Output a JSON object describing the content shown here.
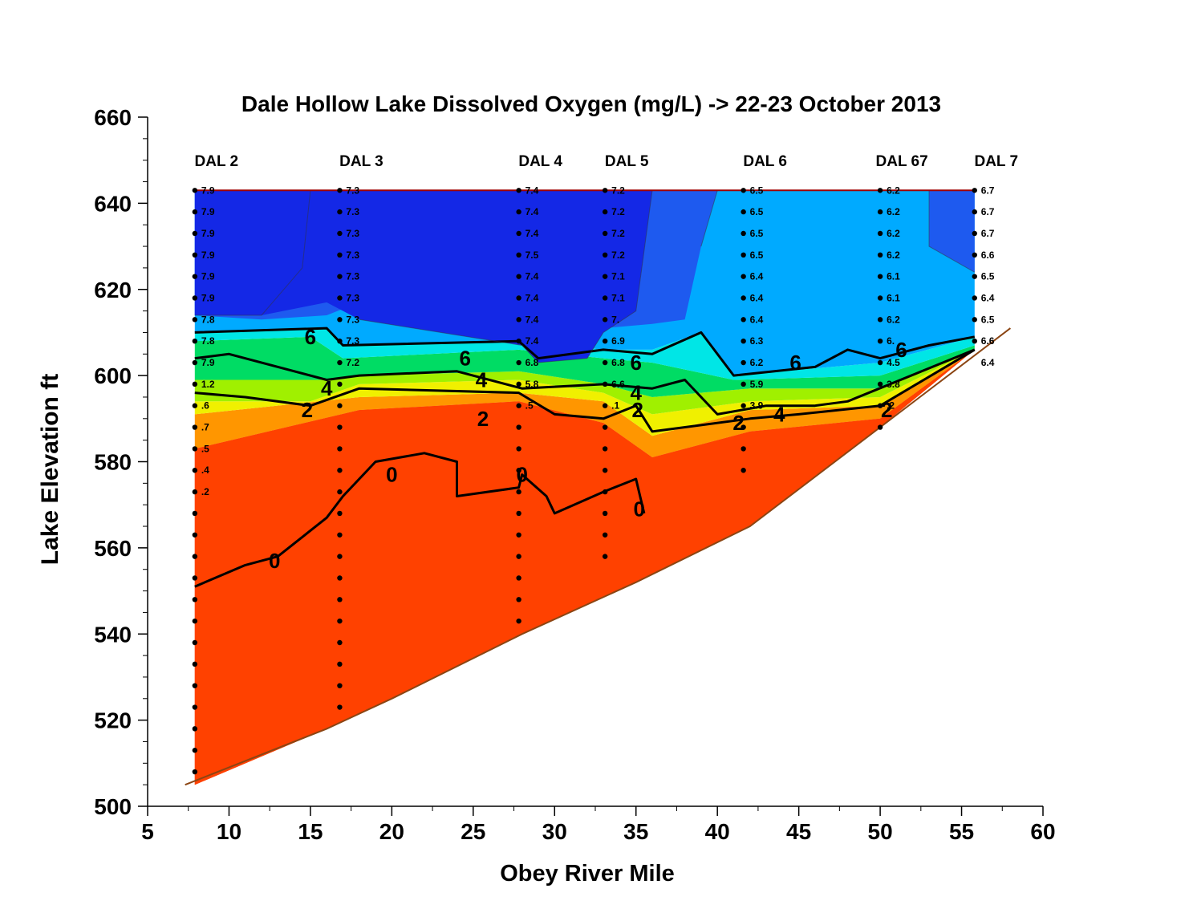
{
  "chart_data": {
    "type": "contour",
    "title": "Dale Hollow Lake Dissolved Oxygen (mg/L)  ->  22-23 October 2013",
    "xlabel": "Obey  River  Mile",
    "ylabel": "Lake  Elevation  ft",
    "xlim": [
      5,
      60
    ],
    "ylim": [
      500,
      660
    ],
    "x_ticks": [
      "5",
      "10",
      "15",
      "20",
      "25",
      "30",
      "35",
      "40",
      "45",
      "50",
      "55",
      "60"
    ],
    "y_ticks": [
      "500",
      "520",
      "540",
      "560",
      "580",
      "600",
      "620",
      "640",
      "660"
    ],
    "surface_elevation": 643,
    "bottom_profile": [
      [
        7.3,
        505
      ],
      [
        16,
        518
      ],
      [
        20,
        525
      ],
      [
        28,
        540
      ],
      [
        35,
        552
      ],
      [
        42,
        565
      ],
      [
        58,
        611
      ]
    ],
    "stations": [
      {
        "name": "DAL 2",
        "mile": 7.9,
        "bottom": 505,
        "labels": [
          "7.9",
          "7.9",
          "7.9",
          "7.9",
          "7.9",
          "7.9",
          "7.8",
          "7.8",
          "7.9",
          "1.2",
          ".6",
          ".7",
          ".5",
          ".4",
          ".2"
        ]
      },
      {
        "name": "DAL 3",
        "mile": 16.8,
        "bottom": 523,
        "labels": [
          "7.3",
          "7.3",
          "7.3",
          "7.3",
          "7.3",
          "7.3",
          "7.3",
          "7.3",
          "7.2"
        ]
      },
      {
        "name": "DAL 4",
        "mile": 27.8,
        "bottom": 543,
        "labels": [
          "7.4",
          "7.4",
          "7.4",
          "7.5",
          "7.4",
          "7.4",
          "7.4",
          "7.4",
          "6.8",
          "5.8",
          ".5"
        ]
      },
      {
        "name": "DAL 5",
        "mile": 33.1,
        "bottom": 554,
        "labels": [
          "7.2",
          "7.2",
          "7.2",
          "7.2",
          "7.1",
          "7.1",
          "7.",
          "6.9",
          "6.8",
          "6.6",
          ".1"
        ]
      },
      {
        "name": "DAL 6",
        "mile": 41.6,
        "bottom": 578,
        "labels": [
          "6.5",
          "6.5",
          "6.5",
          "6.5",
          "6.4",
          "6.4",
          "6.4",
          "6.3",
          "6.2",
          "5.9",
          "3.9"
        ]
      },
      {
        "name": "DAL 67",
        "mile": 50.0,
        "bottom": 588,
        "labels": [
          "6.2",
          "6.2",
          "6.2",
          "6.2",
          "6.1",
          "6.1",
          "6.2",
          "6.",
          "4.5",
          "3.8",
          ".2"
        ]
      },
      {
        "name": "DAL 7",
        "mile": 55.8,
        "bottom": 606,
        "labels": [
          "6.7",
          "6.7",
          "6.7",
          "6.6",
          "6.5",
          "6.4",
          "6.5",
          "6.6",
          "6.4"
        ]
      }
    ],
    "contour_labels": [
      {
        "text": "6",
        "x": 15.0,
        "y": 609
      },
      {
        "text": "6",
        "x": 24.5,
        "y": 604
      },
      {
        "text": "6",
        "x": 35.0,
        "y": 603
      },
      {
        "text": "6",
        "x": 44.8,
        "y": 603
      },
      {
        "text": "6",
        "x": 51.3,
        "y": 606
      },
      {
        "text": "4",
        "x": 16.0,
        "y": 597
      },
      {
        "text": "4",
        "x": 25.5,
        "y": 599
      },
      {
        "text": "4",
        "x": 35.0,
        "y": 596
      },
      {
        "text": "4",
        "x": 43.8,
        "y": 591
      },
      {
        "text": "2",
        "x": 14.8,
        "y": 592
      },
      {
        "text": "2",
        "x": 25.6,
        "y": 590
      },
      {
        "text": "2",
        "x": 35.1,
        "y": 592
      },
      {
        "text": "2",
        "x": 41.3,
        "y": 589
      },
      {
        "text": "2",
        "x": 50.4,
        "y": 592
      },
      {
        "text": "0",
        "x": 12.8,
        "y": 557
      },
      {
        "text": "0",
        "x": 20.0,
        "y": 577
      },
      {
        "text": "0",
        "x": 28.0,
        "y": 577
      },
      {
        "text": "0",
        "x": 35.2,
        "y": 569
      }
    ],
    "colors": {
      "above_7": "#1428e6",
      "6.5_7": "#1e5aef",
      "6_6.5": "#00aaff",
      "5.5_6": "#00e6e6",
      "4_5.5": "#00dc64",
      "3_4": "#a0f000",
      "2_3": "#f0f000",
      "1_2": "#ff9600",
      "below_1": "#ff4100",
      "bottom_line": "#8b4513",
      "surface_line": "#a00000"
    }
  }
}
